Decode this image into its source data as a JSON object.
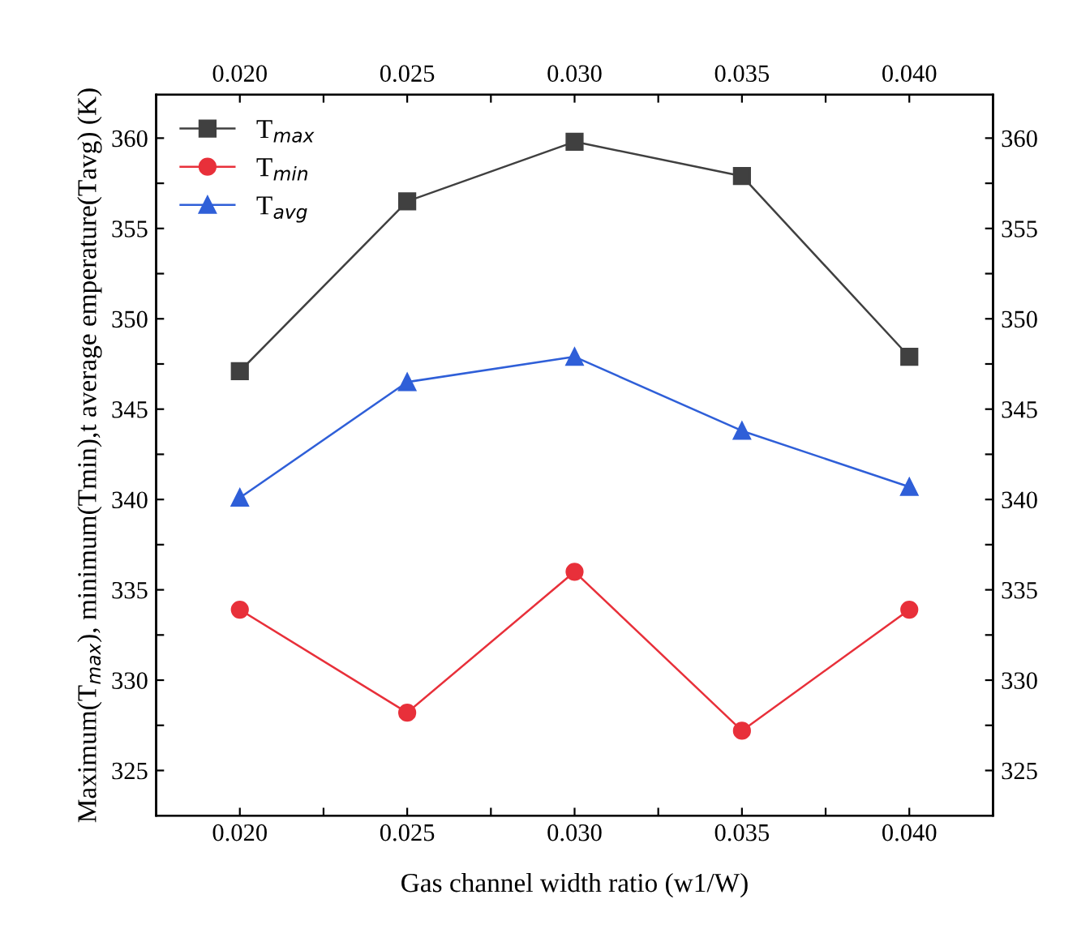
{
  "chart_data": {
    "type": "line",
    "xlabel": "Gas channel width ratio (w1/W)",
    "ylabel": "Maximum(T$_{max}$), minimum(Tmin),t average emperature(Tavg) (K)",
    "x": [
      0.02,
      0.025,
      0.03,
      0.035,
      0.04
    ],
    "series": [
      {
        "name": "T$_{max}$",
        "color": "#404040",
        "marker": "square",
        "values": [
          347.1,
          356.5,
          359.8,
          357.9,
          347.9
        ]
      },
      {
        "name": "T$_{min}$",
        "color": "#e8303a",
        "marker": "circle",
        "values": [
          333.9,
          328.2,
          336.0,
          327.2,
          333.9
        ]
      },
      {
        "name": "T$_{avg}$",
        "color": "#2f5fd8",
        "marker": "triangle",
        "values": [
          340.1,
          346.5,
          347.9,
          343.8,
          340.7
        ]
      }
    ],
    "xlim": [
      0.0175,
      0.0425
    ],
    "xticks": [
      {
        "value": 0.02,
        "label": "0.020"
      },
      {
        "value": 0.0225,
        "label": null
      },
      {
        "value": 0.025,
        "label": "0.025"
      },
      {
        "value": 0.0275,
        "label": null
      },
      {
        "value": 0.03,
        "label": "0.030"
      },
      {
        "value": 0.0325,
        "label": null
      },
      {
        "value": 0.035,
        "label": "0.035"
      },
      {
        "value": 0.0375,
        "label": null
      },
      {
        "value": 0.04,
        "label": "0.040"
      }
    ],
    "x2lim": [
      0.0175,
      0.0425
    ],
    "x2ticks": [
      {
        "value": 0.02,
        "label": "0.020"
      },
      {
        "value": 0.0225,
        "label": null
      },
      {
        "value": 0.025,
        "label": "0.025"
      },
      {
        "value": 0.0275,
        "label": null
      },
      {
        "value": 0.03,
        "label": "0.030"
      },
      {
        "value": 0.0325,
        "label": null
      },
      {
        "value": 0.035,
        "label": "0.035"
      },
      {
        "value": 0.0375,
        "label": null
      },
      {
        "value": 0.04,
        "label": "0.040"
      }
    ],
    "ylim": [
      322.5,
      362.4
    ],
    "yticks": [
      325,
      {
        "value": 327.5,
        "label": null
      },
      330,
      {
        "value": 332.5,
        "label": null
      },
      335,
      {
        "value": 337.5,
        "label": null
      },
      340,
      {
        "value": 342.5,
        "label": null
      },
      345,
      {
        "value": 347.5,
        "label": null
      },
      350,
      {
        "value": 352.5,
        "label": null
      },
      355,
      {
        "value": 357.5,
        "label": null
      },
      360
    ],
    "y2lim": [
      322.5,
      362.4
    ],
    "y2ticks": [
      325,
      {
        "value": 327.5,
        "label": null
      },
      330,
      {
        "value": 332.5,
        "label": null
      },
      335,
      {
        "value": 337.5,
        "label": null
      },
      340,
      {
        "value": 342.5,
        "label": null
      },
      345,
      {
        "value": 347.5,
        "label": null
      },
      350,
      {
        "value": 352.5,
        "label": null
      },
      355,
      {
        "value": 357.5,
        "label": null
      },
      360
    ],
    "legend": "top left",
    "grid": false,
    "line_style": "solid"
  }
}
